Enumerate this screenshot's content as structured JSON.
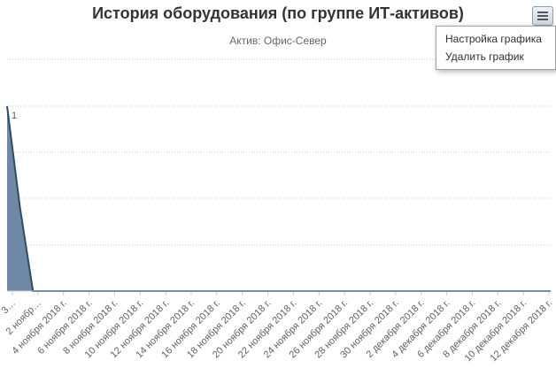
{
  "header": {
    "title": "История оборудования (по группе ИТ-активов)",
    "subtitle": "Актив: Офис-Север"
  },
  "menu": {
    "button_icon": "menu-hamburger-icon",
    "items": [
      {
        "label": "Настройка графика"
      },
      {
        "label": "Удалить график"
      }
    ]
  },
  "colors": {
    "series_fill": "#6e88a5",
    "series_line": "#2f4b66",
    "grid": "#c8c8c8"
  },
  "chart_data": {
    "type": "area",
    "title": "История оборудования (по группе ИТ-активов)",
    "subtitle": "Актив: Офис-Север",
    "x_tick_labels": [
      "3…",
      "2 ноябр…",
      "4 ноября 2018 г.",
      "6 ноября 2018 г.",
      "8 ноября 2018 г.",
      "10 ноября 2018 г.",
      "12 ноября 2018 г.",
      "14 ноября 2018 г.",
      "16 ноября 2018 г.",
      "18 ноября 2018 г.",
      "20 ноября 2018 г.",
      "22 ноября 2018 г.",
      "24 ноября 2018 г.",
      "26 ноября 2018 г.",
      "28 ноября 2018 г.",
      "30 ноября 2018 г.",
      "2 декабря 2018 г.",
      "4 декабря 2018 г.",
      "6 декабря 2018 г.",
      "8 декабря 2018 г.",
      "10 декабря 2018 г.",
      "12 декабря 2018 г."
    ],
    "x": [
      "2018-10-31",
      "2018-11-01",
      "2018-11-02",
      "2018-11-04",
      "2018-11-30",
      "2018-12-12"
    ],
    "values": [
      1,
      0.45,
      0,
      0,
      0,
      0
    ],
    "y_max_label": "1",
    "ylim": [
      0,
      1
    ],
    "grid": true,
    "legend": "none"
  }
}
